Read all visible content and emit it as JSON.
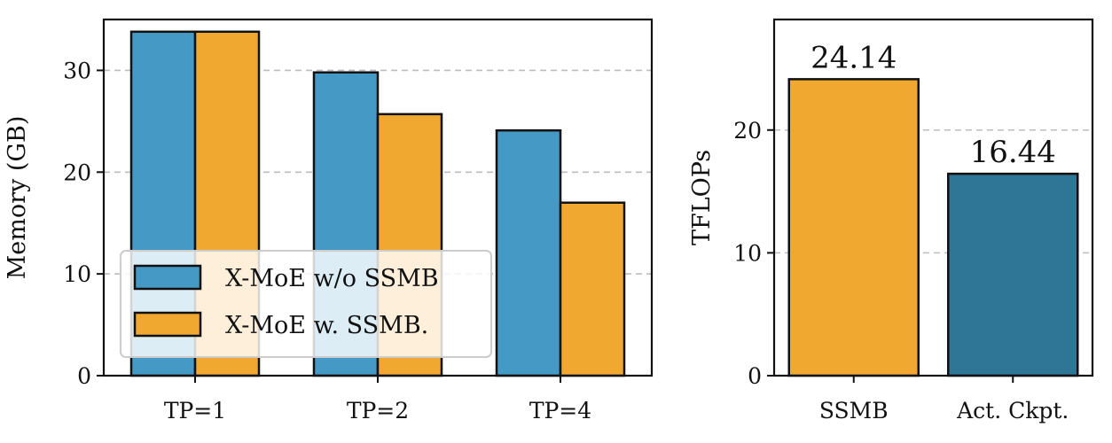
{
  "chart_data": [
    {
      "type": "bar",
      "ylabel": "Memory (GB)",
      "xlabel": "",
      "categories": [
        "TP=1",
        "TP=2",
        "TP=4"
      ],
      "ylim": [
        0,
        35
      ],
      "yticks": [
        0,
        10,
        20,
        30
      ],
      "grid": "y-dashed",
      "legend_position": "lower-left",
      "series": [
        {
          "name": "X-MoE w/o SSMB",
          "color": "#4499c5",
          "values": [
            33.8,
            29.8,
            24.1
          ]
        },
        {
          "name": "X-MoE w. SSMB.",
          "color": "#f0a830",
          "values": [
            33.8,
            25.7,
            17.0
          ]
        }
      ]
    },
    {
      "type": "bar",
      "ylabel": "TFLOPs",
      "xlabel": "",
      "categories": [
        "SSMB",
        "Act. Ckpt."
      ],
      "values": [
        24.14,
        16.44
      ],
      "data_labels": [
        "24.14",
        "16.44"
      ],
      "colors": [
        "#f0a830",
        "#2f7596"
      ],
      "ylim": [
        0,
        29
      ],
      "yticks": [
        0,
        10,
        20
      ],
      "grid": "y-dashed"
    }
  ]
}
